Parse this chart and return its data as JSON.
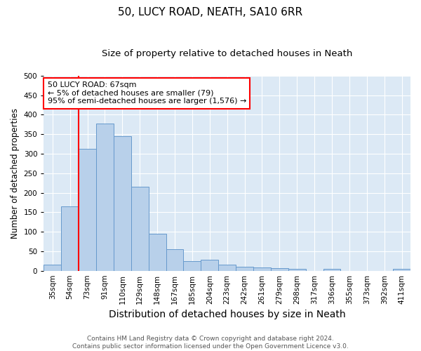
{
  "title": "50, LUCY ROAD, NEATH, SA10 6RR",
  "subtitle": "Size of property relative to detached houses in Neath",
  "xlabel": "Distribution of detached houses by size in Neath",
  "ylabel": "Number of detached properties",
  "bin_labels": [
    "35sqm",
    "54sqm",
    "73sqm",
    "91sqm",
    "110sqm",
    "129sqm",
    "148sqm",
    "167sqm",
    "185sqm",
    "204sqm",
    "223sqm",
    "242sqm",
    "261sqm",
    "279sqm",
    "298sqm",
    "317sqm",
    "336sqm",
    "355sqm",
    "373sqm",
    "392sqm",
    "411sqm"
  ],
  "bar_heights": [
    15,
    165,
    313,
    377,
    345,
    215,
    95,
    56,
    25,
    29,
    15,
    10,
    9,
    6,
    4,
    0,
    5,
    0,
    0,
    0,
    5
  ],
  "bar_color": "#b8d0ea",
  "bar_edge_color": "#6699cc",
  "annotation_box_text": "50 LUCY ROAD: 67sqm\n← 5% of detached houses are smaller (79)\n95% of semi-detached houses are larger (1,576) →",
  "annotation_box_facecolor": "white",
  "annotation_box_edgecolor": "red",
  "vline_color": "red",
  "ylim": [
    0,
    500
  ],
  "yticks": [
    0,
    50,
    100,
    150,
    200,
    250,
    300,
    350,
    400,
    450,
    500
  ],
  "background_color": "#dce9f5",
  "footer_line1": "Contains HM Land Registry data © Crown copyright and database right 2024.",
  "footer_line2": "Contains public sector information licensed under the Open Government Licence v3.0.",
  "title_fontsize": 11,
  "subtitle_fontsize": 9.5,
  "xlabel_fontsize": 10,
  "ylabel_fontsize": 8.5,
  "tick_fontsize": 7.5,
  "footer_fontsize": 6.5
}
